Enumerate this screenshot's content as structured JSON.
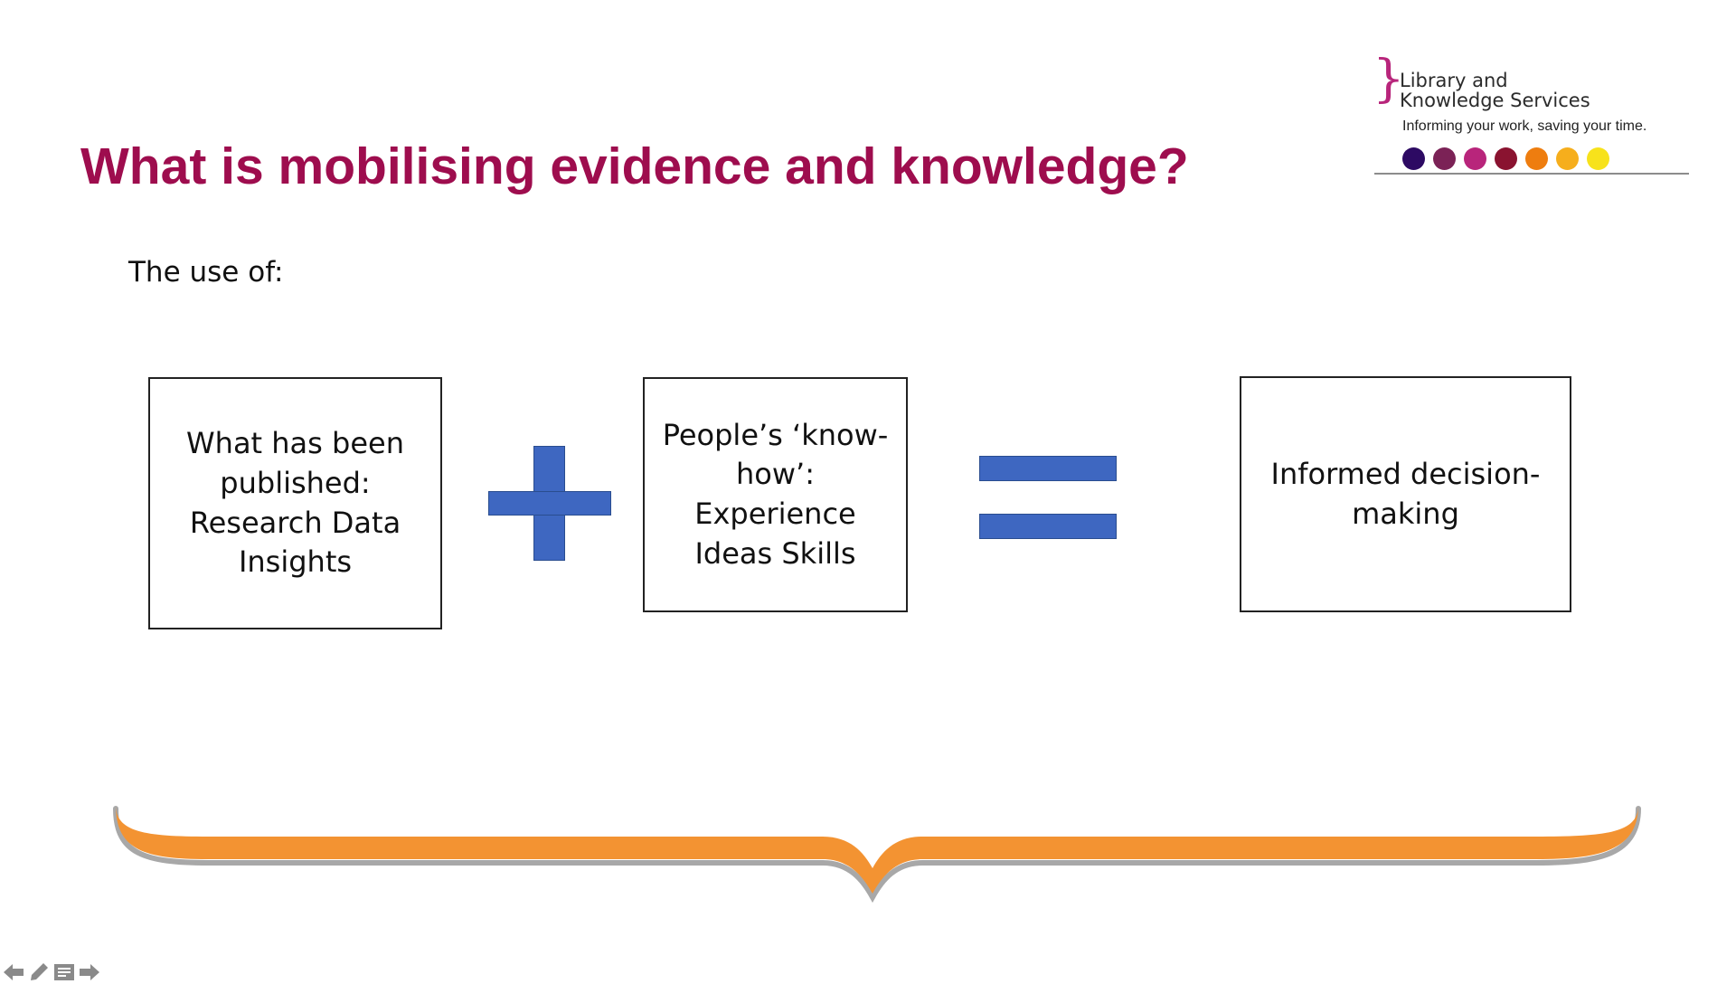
{
  "slide": {
    "title": "What is mobilising evidence and knowledge?",
    "intro": "The use of:",
    "boxes": [
      {
        "text": "What has been\npublished:\nResearch Data\nInsights"
      },
      {
        "text": "People’s ‘know-\nhow’: Experience\nIdeas Skills"
      },
      {
        "text": "Informed decision-\nmaking"
      }
    ],
    "operators": [
      "plus-icon",
      "equals-icon"
    ],
    "brace": "curly-brace-icon"
  },
  "logo": {
    "line1": "Library and",
    "line2": "Knowledge Services",
    "tagline": "Informing your work, saving your time.",
    "dot_colors": [
      "#2d0a63",
      "#7b2256",
      "#b8257b",
      "#8a1330",
      "#ee7d0f",
      "#f6ae1c",
      "#f7e21b"
    ]
  },
  "nav": {
    "icons": [
      "back-arrow-icon",
      "pen-icon",
      "slide-menu-icon",
      "forward-arrow-icon"
    ]
  },
  "colors": {
    "title": "#9e0d4e",
    "accent_blue": "#3e67c1",
    "brace_orange": "#f39332",
    "logo_bracket": "#b8257b",
    "nav_icon": "#8a8a8a"
  }
}
